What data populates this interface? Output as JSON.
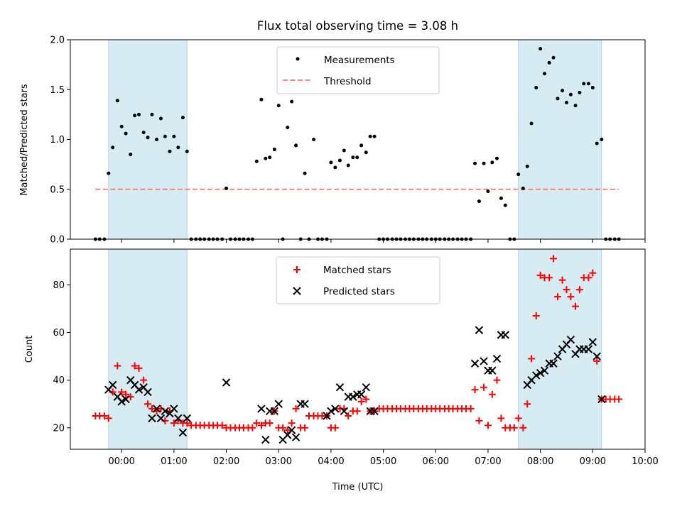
{
  "colors": {
    "shade": "#add8e6",
    "threshold": "#ff7f7f",
    "matched": "#ff0000",
    "predicted": "#000000",
    "measurement": "#000000"
  },
  "chart_data": [
    {
      "type": "scatter",
      "title": "Flux total observing time = 3.08 h",
      "xlabel": "",
      "ylabel": "Matched/Predicted stars",
      "xlim": [
        -0.98,
        10.0
      ],
      "ylim": [
        0,
        2.0
      ],
      "yticks": [
        0.0,
        0.5,
        1.0,
        1.5,
        2.0
      ],
      "ytick_labels": [
        "0.0",
        "0.5",
        "1.0",
        "1.5",
        "2.0"
      ],
      "shaded_intervals": [
        [
          -0.25,
          1.25
        ],
        [
          7.58,
          9.17
        ]
      ],
      "threshold": {
        "label": "Threshold",
        "value": 0.5,
        "x_range": [
          -0.5,
          9.5
        ]
      },
      "legend": {
        "position": "top-center",
        "entries": [
          "Measurements",
          "Threshold"
        ]
      },
      "series": [
        {
          "name": "Measurements",
          "x": [
            -0.5,
            -0.42,
            -0.33,
            -0.25,
            -0.17,
            -0.08,
            0.0,
            0.08,
            0.17,
            0.25,
            0.33,
            0.42,
            0.5,
            0.58,
            0.67,
            0.75,
            0.83,
            0.92,
            1.0,
            1.08,
            1.17,
            1.25,
            1.33,
            1.42,
            1.5,
            1.58,
            1.67,
            1.75,
            1.83,
            1.92,
            2.0,
            2.08,
            2.17,
            2.25,
            2.33,
            2.42,
            2.5,
            2.58,
            2.67,
            2.75,
            2.83,
            2.92,
            3.0,
            3.08,
            3.17,
            3.25,
            3.33,
            3.42,
            3.5,
            3.58,
            3.67,
            3.75,
            3.83,
            3.92,
            4.0,
            4.08,
            4.17,
            4.25,
            4.33,
            4.42,
            4.5,
            4.58,
            4.67,
            4.75,
            4.83,
            4.92,
            5.0,
            5.08,
            5.17,
            5.25,
            5.33,
            5.42,
            5.5,
            5.58,
            5.67,
            5.75,
            5.83,
            5.92,
            6.0,
            6.08,
            6.17,
            6.25,
            6.33,
            6.42,
            6.5,
            6.58,
            6.67,
            6.75,
            6.83,
            6.92,
            7.0,
            7.08,
            7.17,
            7.25,
            7.33,
            7.42,
            7.5,
            7.58,
            7.67,
            7.75,
            7.83,
            7.92,
            8.0,
            8.08,
            8.17,
            8.25,
            8.33,
            8.42,
            8.5,
            8.58,
            8.67,
            8.75,
            8.83,
            8.92,
            9.0,
            9.08,
            9.17,
            9.25,
            9.33,
            9.42,
            9.5
          ],
          "y": [
            0,
            0,
            0,
            0.66,
            0.92,
            1.39,
            1.13,
            1.06,
            0.85,
            1.24,
            1.25,
            1.07,
            1.02,
            1.25,
            1.0,
            1.21,
            1.03,
            0.88,
            1.03,
            0.92,
            1.22,
            0.88,
            0,
            0,
            0,
            0,
            0,
            0,
            0,
            0,
            0.51,
            0,
            0,
            0,
            0,
            0,
            0,
            0.78,
            1.4,
            0.81,
            0.82,
            0.9,
            1.34,
            0,
            1.12,
            1.38,
            0.94,
            0,
            0.66,
            0,
            1.0,
            0,
            0,
            0,
            0.77,
            0.72,
            0.79,
            0.89,
            0.74,
            0.82,
            0.82,
            0.94,
            0.87,
            1.03,
            1.03,
            0,
            0,
            0,
            0,
            0,
            0,
            0,
            0,
            0,
            0,
            0,
            0,
            0,
            0,
            0,
            0,
            0,
            0,
            0,
            0,
            0,
            0,
            0.76,
            0.38,
            0.76,
            0.48,
            0.77,
            0.81,
            0.41,
            0.34,
            0,
            0,
            0.65,
            0.51,
            0.73,
            1.16,
            1.52,
            1.91,
            1.66,
            1.77,
            1.82,
            1.41,
            1.49,
            1.37,
            1.45,
            1.34,
            1.47,
            1.56,
            1.56,
            1.52,
            0.96,
            1.0,
            0,
            0,
            0,
            0
          ]
        }
      ]
    },
    {
      "type": "scatter",
      "title": "",
      "xlabel": "Time (UTC)",
      "ylabel": "Count",
      "xlim": [
        -0.98,
        10.0
      ],
      "ylim": [
        11,
        95
      ],
      "yticks": [
        20,
        40,
        60,
        80
      ],
      "ytick_labels": [
        "20",
        "40",
        "60",
        "80"
      ],
      "xticks": [
        0,
        1,
        2,
        3,
        4,
        5,
        6,
        7,
        8,
        9,
        10
      ],
      "xtick_labels": [
        "00:00",
        "01:00",
        "02:00",
        "03:00",
        "04:00",
        "05:00",
        "06:00",
        "07:00",
        "08:00",
        "09:00",
        "10:00"
      ],
      "shaded_intervals": [
        [
          -0.25,
          1.25
        ],
        [
          7.58,
          9.17
        ]
      ],
      "legend": {
        "position": "top-center",
        "entries": [
          "Matched stars",
          "Predicted stars"
        ]
      },
      "series": [
        {
          "name": "Matched stars",
          "marker": "plus",
          "x": [
            -0.5,
            -0.42,
            -0.33,
            -0.25,
            -0.17,
            -0.08,
            0.0,
            0.08,
            0.17,
            0.25,
            0.33,
            0.42,
            0.5,
            0.58,
            0.67,
            0.75,
            0.83,
            0.92,
            1.0,
            1.08,
            1.17,
            1.25,
            1.33,
            1.42,
            1.5,
            1.58,
            1.67,
            1.75,
            1.83,
            1.92,
            2.0,
            2.08,
            2.17,
            2.25,
            2.33,
            2.42,
            2.5,
            2.58,
            2.67,
            2.75,
            2.83,
            2.92,
            3.0,
            3.08,
            3.17,
            3.25,
            3.33,
            3.42,
            3.5,
            3.58,
            3.67,
            3.75,
            3.83,
            3.92,
            4.0,
            4.08,
            4.17,
            4.25,
            4.33,
            4.42,
            4.5,
            4.58,
            4.67,
            4.75,
            4.83,
            4.92,
            5.0,
            5.08,
            5.17,
            5.25,
            5.33,
            5.42,
            5.5,
            5.58,
            5.67,
            5.75,
            5.83,
            5.92,
            6.0,
            6.08,
            6.17,
            6.25,
            6.33,
            6.42,
            6.5,
            6.58,
            6.67,
            6.75,
            6.83,
            6.92,
            7.0,
            7.08,
            7.17,
            7.25,
            7.33,
            7.42,
            7.5,
            7.58,
            7.67,
            7.75,
            7.83,
            7.92,
            8.0,
            8.08,
            8.17,
            8.25,
            8.33,
            8.42,
            8.5,
            8.58,
            8.67,
            8.75,
            8.83,
            8.92,
            9.0,
            9.08,
            9.17,
            9.25,
            9.33,
            9.42,
            9.5
          ],
          "y": [
            25,
            25,
            25,
            24,
            35,
            46,
            35,
            34,
            33,
            46,
            45,
            40,
            30,
            28,
            27,
            28,
            23,
            27,
            22,
            23,
            22,
            22,
            21,
            21,
            21,
            21,
            21,
            21,
            21,
            21,
            20,
            20,
            20,
            20,
            20,
            20,
            20,
            22,
            21,
            22,
            22,
            27,
            20,
            20,
            19,
            22,
            28,
            20,
            20,
            25,
            25,
            25,
            25,
            25,
            20,
            20,
            28,
            28,
            25,
            27,
            27,
            31,
            32,
            27,
            27,
            28,
            28,
            28,
            28,
            28,
            28,
            28,
            28,
            28,
            28,
            28,
            28,
            28,
            28,
            28,
            28,
            28,
            28,
            28,
            28,
            28,
            28,
            36,
            23,
            37,
            21,
            34,
            40,
            24,
            20,
            20,
            20,
            24,
            20,
            30,
            49,
            67,
            84,
            83,
            83,
            91,
            75,
            82,
            78,
            75,
            71,
            78,
            83,
            83,
            85,
            48,
            32,
            32,
            32,
            32,
            32
          ]
        },
        {
          "name": "Predicted stars",
          "marker": "x",
          "x": [
            -0.25,
            -0.17,
            -0.08,
            0.0,
            0.08,
            0.17,
            0.25,
            0.33,
            0.42,
            0.5,
            0.58,
            0.67,
            0.75,
            0.83,
            0.92,
            1.0,
            1.08,
            1.17,
            1.25,
            2.0,
            2.67,
            2.75,
            2.83,
            2.92,
            3.0,
            3.08,
            3.17,
            3.25,
            3.33,
            3.42,
            3.5,
            3.92,
            4.0,
            4.08,
            4.17,
            4.25,
            4.33,
            4.42,
            4.5,
            4.58,
            4.67,
            4.75,
            4.83,
            6.75,
            6.83,
            6.92,
            7.0,
            7.08,
            7.17,
            7.25,
            7.33,
            7.75,
            7.83,
            7.92,
            8.0,
            8.08,
            8.17,
            8.25,
            8.33,
            8.42,
            8.5,
            8.58,
            8.67,
            8.75,
            8.83,
            8.92,
            9.0,
            9.08,
            9.17
          ],
          "y": [
            36,
            38,
            33,
            31,
            32,
            40,
            38,
            36,
            37,
            35,
            24,
            28,
            24,
            27,
            26,
            28,
            24,
            18,
            24,
            39,
            28,
            15,
            27,
            27,
            30,
            15,
            17,
            19,
            16,
            30,
            30,
            25,
            27,
            28,
            37,
            27,
            33,
            33,
            34,
            34,
            37,
            27,
            27,
            47,
            61,
            48,
            44,
            44,
            49,
            59,
            59,
            38,
            40,
            42,
            43,
            44,
            47,
            47,
            50,
            53,
            55,
            57,
            51,
            53,
            53,
            53,
            56,
            50,
            32
          ]
        }
      ]
    }
  ]
}
